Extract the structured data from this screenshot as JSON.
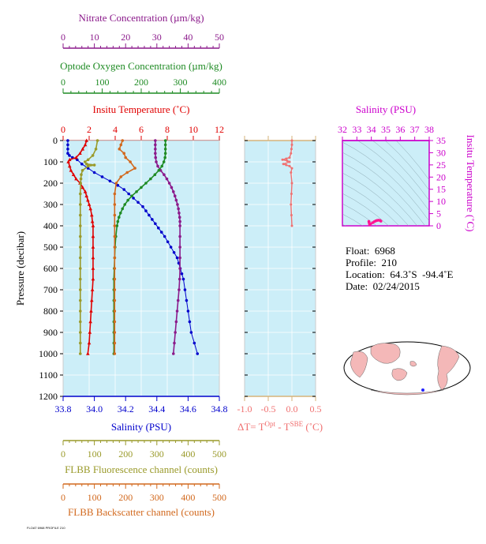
{
  "chart_data": [
    {
      "type": "line",
      "name": "profile-panel",
      "ylabel": "Pressure (decibar)",
      "ylim": [
        0,
        1200
      ],
      "yticks": [
        "0",
        "100",
        "200",
        "300",
        "400",
        "500",
        "600",
        "700",
        "800",
        "900",
        "1000",
        "1100",
        "1200"
      ],
      "grid": true,
      "axes": {
        "nitrate": {
          "label": "Nitrate Concentration (µm/kg)",
          "lim": [
            0,
            50
          ],
          "ticks": [
            "0",
            "10",
            "20",
            "30",
            "40",
            "50"
          ],
          "color": "#8b1a8b"
        },
        "oxygen": {
          "label": "Optode Oxygen Concentration (µm/kg)",
          "lim": [
            0,
            400
          ],
          "ticks": [
            "0",
            "100",
            "200",
            "300",
            "400"
          ],
          "color": "#1f8b24"
        },
        "temperature": {
          "label": "Insitu Temperature (˚C)",
          "lim": [
            0,
            12
          ],
          "ticks": [
            "0",
            "2",
            "4",
            "6",
            "8",
            "10",
            "12"
          ],
          "color": "#e00000"
        },
        "salinity": {
          "label": "Salinity (PSU)",
          "lim": [
            33.8,
            34.8
          ],
          "ticks": [
            "33.8",
            "34.0",
            "34.2",
            "34.4",
            "34.6",
            "34.8"
          ],
          "color": "#0000cc"
        },
        "fluorescence": {
          "label": "FLBB Fluorescence channel (counts)",
          "lim": [
            0,
            500
          ],
          "ticks": [
            "0",
            "100",
            "200",
            "300",
            "400",
            "500"
          ],
          "color": "#9a9a2a"
        },
        "backscatter": {
          "label": "FLBB Backscatter channel (counts)",
          "lim": [
            0,
            500
          ],
          "ticks": [
            "0",
            "100",
            "200",
            "300",
            "400",
            "500"
          ],
          "color": "#d2691e"
        }
      },
      "series": [
        {
          "axis": "salinity",
          "color": "#0000cc",
          "marker": "circle",
          "points": [
            [
              33.83,
              0
            ],
            [
              33.83,
              20
            ],
            [
              33.83,
              40
            ],
            [
              33.83,
              60
            ],
            [
              33.84,
              70
            ],
            [
              33.86,
              80
            ],
            [
              33.89,
              90
            ],
            [
              33.92,
              110
            ],
            [
              33.96,
              130
            ],
            [
              34.0,
              150
            ],
            [
              34.05,
              170
            ],
            [
              34.1,
              190
            ],
            [
              34.15,
              210
            ],
            [
              34.19,
              230
            ],
            [
              34.22,
              250
            ],
            [
              34.25,
              270
            ],
            [
              34.28,
              290
            ],
            [
              34.31,
              310
            ],
            [
              34.33,
              330
            ],
            [
              34.35,
              350
            ],
            [
              34.37,
              370
            ],
            [
              34.39,
              390
            ],
            [
              34.41,
              410
            ],
            [
              34.43,
              430
            ],
            [
              34.45,
              450
            ],
            [
              34.47,
              475
            ],
            [
              34.49,
              500
            ],
            [
              34.51,
              525
            ],
            [
              34.53,
              550
            ],
            [
              34.54,
              575
            ],
            [
              34.55,
              600
            ],
            [
              34.56,
              625
            ],
            [
              34.57,
              650
            ],
            [
              34.58,
              700
            ],
            [
              34.59,
              750
            ],
            [
              34.6,
              800
            ],
            [
              34.61,
              850
            ],
            [
              34.62,
              900
            ],
            [
              34.64,
              950
            ],
            [
              34.66,
              1000
            ]
          ]
        },
        {
          "axis": "temperature",
          "color": "#e00000",
          "marker": "triangle",
          "points": [
            [
              1.8,
              0
            ],
            [
              1.7,
              20
            ],
            [
              1.5,
              40
            ],
            [
              1.3,
              60
            ],
            [
              1.0,
              80
            ],
            [
              0.5,
              90
            ],
            [
              0.4,
              100
            ],
            [
              0.5,
              120
            ],
            [
              0.6,
              140
            ],
            [
              0.8,
              160
            ],
            [
              1.0,
              180
            ],
            [
              1.3,
              200
            ],
            [
              1.5,
              220
            ],
            [
              1.7,
              240
            ],
            [
              1.8,
              260
            ],
            [
              1.9,
              280
            ],
            [
              2.0,
              300
            ],
            [
              2.1,
              320
            ],
            [
              2.2,
              350
            ],
            [
              2.25,
              380
            ],
            [
              2.3,
              400
            ],
            [
              2.3,
              450
            ],
            [
              2.3,
              500
            ],
            [
              2.3,
              550
            ],
            [
              2.3,
              600
            ],
            [
              2.3,
              650
            ],
            [
              2.25,
              700
            ],
            [
              2.2,
              750
            ],
            [
              2.15,
              800
            ],
            [
              2.1,
              850
            ],
            [
              2.05,
              900
            ],
            [
              2.0,
              950
            ],
            [
              1.9,
              1000
            ]
          ]
        },
        {
          "axis": "nitrate",
          "color": "#8b1a8b",
          "marker": "circle",
          "points": [
            [
              29.5,
              0
            ],
            [
              29.5,
              20
            ],
            [
              29.5,
              40
            ],
            [
              29.5,
              60
            ],
            [
              29.6,
              80
            ],
            [
              29.8,
              100
            ],
            [
              30.3,
              120
            ],
            [
              31.2,
              140
            ],
            [
              32.3,
              160
            ],
            [
              33.2,
              180
            ],
            [
              34.0,
              200
            ],
            [
              34.7,
              220
            ],
            [
              35.3,
              240
            ],
            [
              35.8,
              260
            ],
            [
              36.2,
              280
            ],
            [
              36.6,
              300
            ],
            [
              36.9,
              320
            ],
            [
              37.1,
              340
            ],
            [
              37.3,
              360
            ],
            [
              37.4,
              380
            ],
            [
              37.4,
              400
            ],
            [
              37.4,
              450
            ],
            [
              37.4,
              500
            ],
            [
              37.4,
              550
            ],
            [
              37.4,
              600
            ],
            [
              37.3,
              650
            ],
            [
              37.1,
              700
            ],
            [
              36.8,
              750
            ],
            [
              36.5,
              800
            ],
            [
              36.2,
              850
            ],
            [
              35.9,
              900
            ],
            [
              35.6,
              950
            ],
            [
              35.3,
              1000
            ]
          ]
        },
        {
          "axis": "oxygen",
          "color": "#1f8b24",
          "marker": "circle",
          "points": [
            [
              262,
              0
            ],
            [
              262,
              20
            ],
            [
              262,
              40
            ],
            [
              262,
              60
            ],
            [
              261,
              80
            ],
            [
              258,
              100
            ],
            [
              253,
              120
            ],
            [
              245,
              140
            ],
            [
              235,
              160
            ],
            [
              224,
              180
            ],
            [
              212,
              200
            ],
            [
              200,
              220
            ],
            [
              188,
              240
            ],
            [
              176,
              260
            ],
            [
              166,
              280
            ],
            [
              158,
              300
            ],
            [
              152,
              320
            ],
            [
              147,
              340
            ],
            [
              143,
              360
            ],
            [
              140,
              380
            ],
            [
              138,
              400
            ],
            [
              135,
              450
            ],
            [
              133,
              500
            ],
            [
              132,
              550
            ],
            [
              131,
              600
            ],
            [
              130,
              650
            ],
            [
              130,
              700
            ],
            [
              130,
              750
            ],
            [
              130,
              800
            ],
            [
              130,
              850
            ],
            [
              130,
              900
            ],
            [
              130,
              950
            ],
            [
              130,
              1000
            ]
          ]
        },
        {
          "axis": "fluorescence",
          "color": "#9a9a2a",
          "marker": "circle",
          "points": [
            [
              110,
              0
            ],
            [
              105,
              40
            ],
            [
              95,
              70
            ],
            [
              80,
              90
            ],
            [
              70,
              100
            ],
            [
              75,
              110
            ],
            [
              100,
              115
            ],
            [
              80,
              120
            ],
            [
              62,
              140
            ],
            [
              58,
              160
            ],
            [
              57,
              180
            ],
            [
              56,
              200
            ],
            [
              55,
              250
            ],
            [
              55,
              300
            ],
            [
              55,
              350
            ],
            [
              55,
              400
            ],
            [
              55,
              450
            ],
            [
              55,
              500
            ],
            [
              55,
              550
            ],
            [
              55,
              600
            ],
            [
              55,
              650
            ],
            [
              55,
              700
            ],
            [
              55,
              750
            ],
            [
              55,
              800
            ],
            [
              55,
              850
            ],
            [
              55,
              900
            ],
            [
              55,
              950
            ],
            [
              55,
              1000
            ]
          ]
        },
        {
          "axis": "backscatter",
          "color": "#d2691e",
          "marker": "circle",
          "points": [
            [
              190,
              0
            ],
            [
              185,
              20
            ],
            [
              180,
              40
            ],
            [
              195,
              60
            ],
            [
              200,
              80
            ],
            [
              215,
              100
            ],
            [
              230,
              130
            ],
            [
              205,
              150
            ],
            [
              185,
              170
            ],
            [
              170,
              200
            ],
            [
              165,
              250
            ],
            [
              165,
              300
            ],
            [
              165,
              350
            ],
            [
              165,
              400
            ],
            [
              165,
              450
            ],
            [
              165,
              500
            ],
            [
              165,
              550
            ],
            [
              165,
              600
            ],
            [
              165,
              650
            ],
            [
              165,
              700
            ],
            [
              165,
              750
            ],
            [
              165,
              800
            ],
            [
              165,
              850
            ],
            [
              165,
              900
            ],
            [
              165,
              950
            ],
            [
              165,
              1000
            ]
          ]
        }
      ]
    },
    {
      "type": "line",
      "name": "delta-t-panel",
      "xlabel": "ΔT= T",
      "xlabel_sup1": "Opt",
      "xlabel_mid": " - T",
      "xlabel_sup2": "SBE",
      "xlabel_end": "  (˚C)",
      "xlim": [
        -1.0,
        0.5
      ],
      "xticks": [
        "-1.0",
        "-0.5",
        "0.0",
        "0.5"
      ],
      "ylim": [
        0,
        1200
      ],
      "color": "#f07070",
      "points": [
        [
          0.0,
          0
        ],
        [
          0.0,
          20
        ],
        [
          -0.01,
          40
        ],
        [
          -0.02,
          60
        ],
        [
          -0.05,
          80
        ],
        [
          -0.12,
          85
        ],
        [
          -0.2,
          90
        ],
        [
          -0.1,
          95
        ],
        [
          -0.05,
          100
        ],
        [
          -0.18,
          110
        ],
        [
          -0.12,
          115
        ],
        [
          -0.05,
          120
        ],
        [
          0.0,
          130
        ],
        [
          -0.02,
          150
        ],
        [
          0.0,
          200
        ],
        [
          -0.01,
          250
        ],
        [
          -0.02,
          300
        ],
        [
          -0.01,
          350
        ],
        [
          0.0,
          400
        ]
      ]
    },
    {
      "type": "line",
      "name": "ts-panel",
      "xlabel": "Salinity (PSU)",
      "ylabel": "Insitu Temperature (˚C)",
      "xlim": [
        32,
        38
      ],
      "ylim": [
        0,
        35
      ],
      "xticks": [
        "32",
        "33",
        "34",
        "35",
        "36",
        "37",
        "38"
      ],
      "yticks": [
        "0",
        "5",
        "10",
        "15",
        "20",
        "25",
        "30",
        "35"
      ],
      "color": "#ff1493",
      "points": [
        [
          33.83,
          1.8
        ],
        [
          33.85,
          1.2
        ],
        [
          33.88,
          0.5
        ],
        [
          33.95,
          0.8
        ],
        [
          34.1,
          1.3
        ],
        [
          34.2,
          1.7
        ],
        [
          34.3,
          2.0
        ],
        [
          34.4,
          2.2
        ],
        [
          34.5,
          2.3
        ],
        [
          34.6,
          2.2
        ],
        [
          34.66,
          1.9
        ]
      ]
    }
  ],
  "float_info": {
    "float": "Float:  6968",
    "profile": "Profile:  210",
    "location": "Location:  64.3˚S  -94.4˚E",
    "date": "Date:  02/24/2015"
  },
  "stamp": "FLOAT 6968 PROFILE 210"
}
